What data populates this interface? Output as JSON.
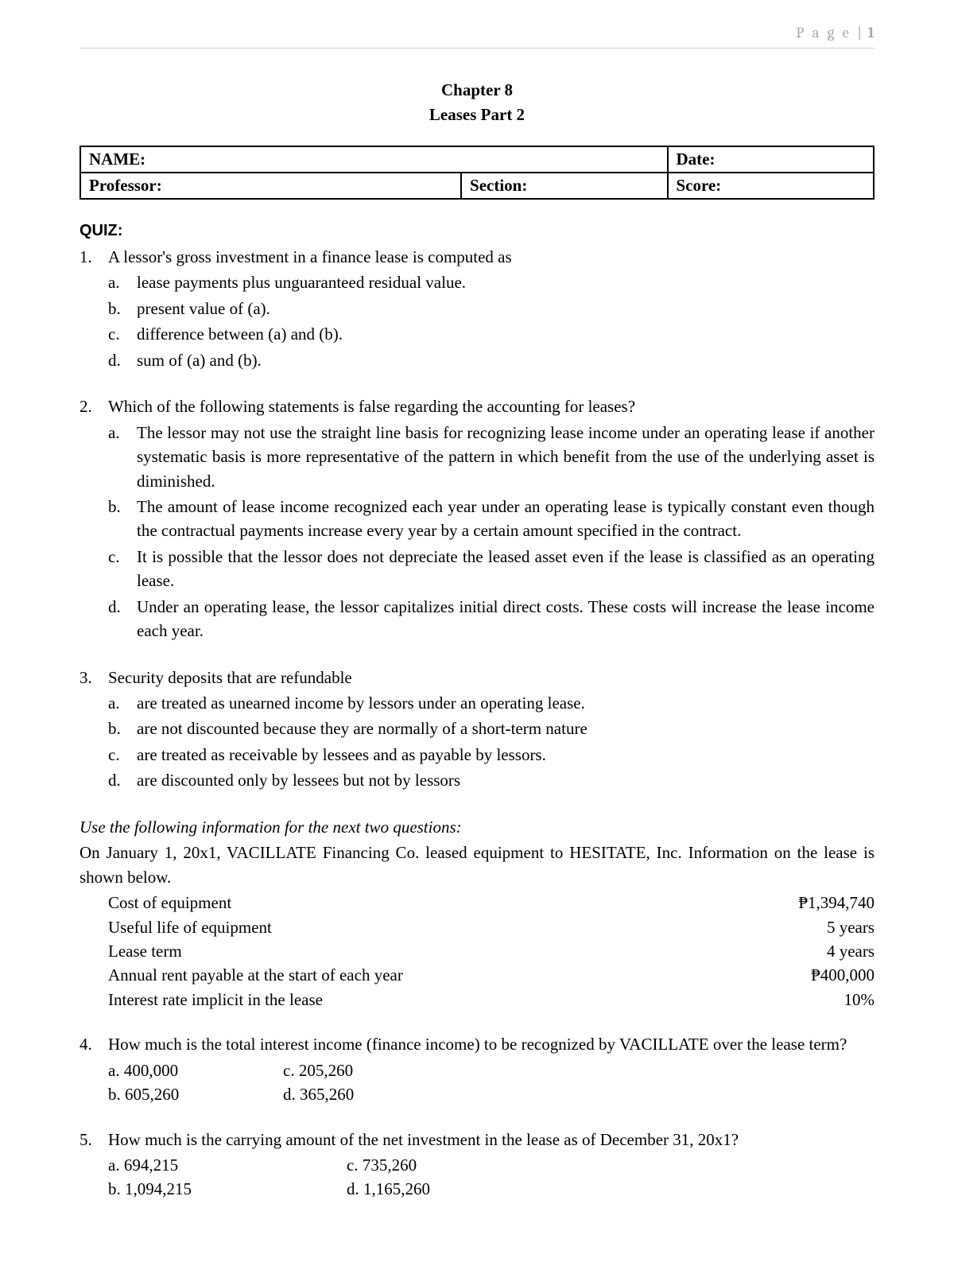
{
  "header": {
    "label": "P a g e",
    "sep": "|",
    "num": "1"
  },
  "chapter": {
    "title": "Chapter 8",
    "subtitle": "Leases Part 2"
  },
  "info": {
    "name": "NAME:",
    "date": "Date:",
    "professor": "Professor:",
    "section": "Section:",
    "score": "Score:"
  },
  "quiz_label": "QUIZ:",
  "questions": [
    {
      "num": "1.",
      "text": "A lessor's gross investment in a finance lease is computed as",
      "options": [
        {
          "l": "a.",
          "t": "lease payments plus unguaranteed residual value."
        },
        {
          "l": "b.",
          "t": "present value of (a)."
        },
        {
          "l": "c.",
          "t": "difference between (a) and (b)."
        },
        {
          "l": "d.",
          "t": "sum of (a) and (b)."
        }
      ]
    },
    {
      "num": "2.",
      "text": "Which of the following statements is false regarding the accounting for leases?",
      "options": [
        {
          "l": "a.",
          "t": "The lessor may not use the straight line basis for recognizing lease income under an operating lease if another systematic basis is more representative of the pattern in which benefit from the use of the underlying asset is diminished.",
          "justify": true
        },
        {
          "l": "b.",
          "t": "The amount of lease income recognized each year under an operating lease is typically constant even though the contractual payments increase every year by a certain amount specified in the contract.",
          "justify": true
        },
        {
          "l": "c.",
          "t": "It is possible that the lessor does not depreciate the leased asset even if the lease is classified as an operating lease.",
          "justify": true
        },
        {
          "l": "d.",
          "t": "Under an operating lease, the lessor capitalizes initial direct costs. These costs will increase the lease income each year.",
          "justify": true
        }
      ]
    },
    {
      "num": "3.",
      "text": "Security deposits that are refundable",
      "options": [
        {
          "l": "a.",
          "t": "are treated as unearned income by lessors under an operating lease."
        },
        {
          "l": "b.",
          "t": "are not discounted because they are normally of a short-term nature"
        },
        {
          "l": "c.",
          "t": "are treated as receivable by lessees and as payable by lessors."
        },
        {
          "l": "d.",
          "t": "are discounted only by lessees but not by lessors"
        }
      ]
    }
  ],
  "scenario": {
    "intro": "Use the following information for the next two questions:",
    "text": "On January 1, 20x1, VACILLATE Financing Co. leased equipment to HESITATE, Inc. Information on the lease is shown below.",
    "rows": [
      {
        "label": "Cost of equipment",
        "value": "₱1,394,740"
      },
      {
        "label": "Useful life of equipment",
        "value": "5 years"
      },
      {
        "label": "Lease term",
        "value": "4 years"
      },
      {
        "label": "Annual rent payable at the start of each year",
        "value": "₱400,000"
      },
      {
        "label": "Interest rate implicit in the lease",
        "value": "10%"
      }
    ]
  },
  "questions2": [
    {
      "num": "4.",
      "text": "How much is the total interest income (finance income) to be recognized by VACILLATE over the lease term?",
      "justify": true,
      "cols": [
        [
          "a. 400,000",
          "b. 605,260"
        ],
        [
          "c. 205,260",
          "d. 365,260"
        ]
      ],
      "col2_pad": "0px"
    },
    {
      "num": "5.",
      "text": "How much is the carrying amount of the net investment in the lease as of December 31, 20x1?",
      "cols": [
        [
          "a. 694,215",
          "b. 1,094,215"
        ],
        [
          "c. 735,260",
          "d. 1,165,260"
        ]
      ],
      "col2_pad": "80px"
    }
  ]
}
